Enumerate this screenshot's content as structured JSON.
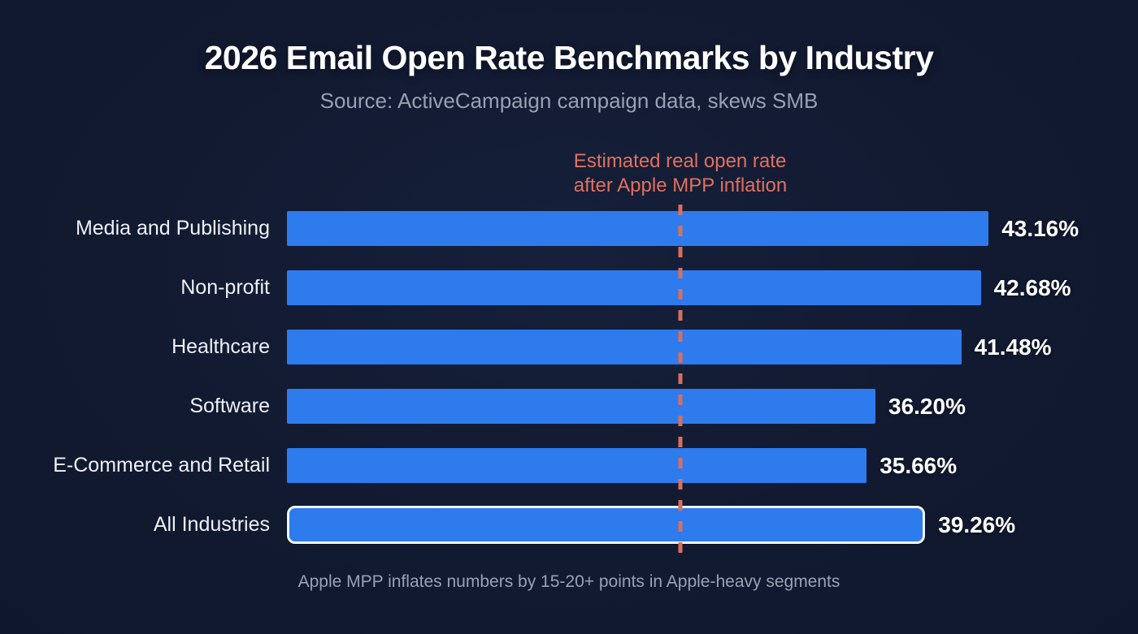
{
  "page": {
    "background_color": "#121a31"
  },
  "header": {
    "title": "2026 Email Open Rate Benchmarks by Industry",
    "subtitle": "Source: ActiveCampaign campaign data, skews SMB"
  },
  "annotation": {
    "line1": "Estimated real open rate",
    "line2": "after Apple MPP inflation",
    "color": "#e2705e"
  },
  "footnote": "Apple MPP inflates numbers by 15-20+ points in Apple-heavy segments",
  "chart_data": {
    "type": "bar",
    "orientation": "horizontal",
    "title": "2026 Email Open Rate Benchmarks by Industry",
    "subtitle": "Source: ActiveCampaign campaign data, skews SMB",
    "categories": [
      "Media and Publishing",
      "Non-profit",
      "Healthcare",
      "Software",
      "E-Commerce and Retail",
      "All Industries"
    ],
    "values": [
      43.16,
      42.68,
      41.48,
      36.2,
      35.66,
      39.26
    ],
    "value_labels": [
      "43.16%",
      "42.68%",
      "41.48%",
      "36.20%",
      "35.66%",
      "39.26%"
    ],
    "unit": "%",
    "highlighted_category": "All Industries",
    "axis": {
      "min": 0,
      "max": 48.8,
      "gridlines": false,
      "ticks_visible": false
    },
    "reference_line": {
      "value": 24.2,
      "style": "dashed",
      "color": "#d96f5b",
      "label": "Estimated real open rate after Apple MPP inflation"
    },
    "bar_color": "#2e7bee",
    "highlight_border_color": "#f2f5f9",
    "legend_position": "none",
    "footnote": "Apple MPP inflates numbers by 15-20+ points in Apple-heavy segments"
  }
}
